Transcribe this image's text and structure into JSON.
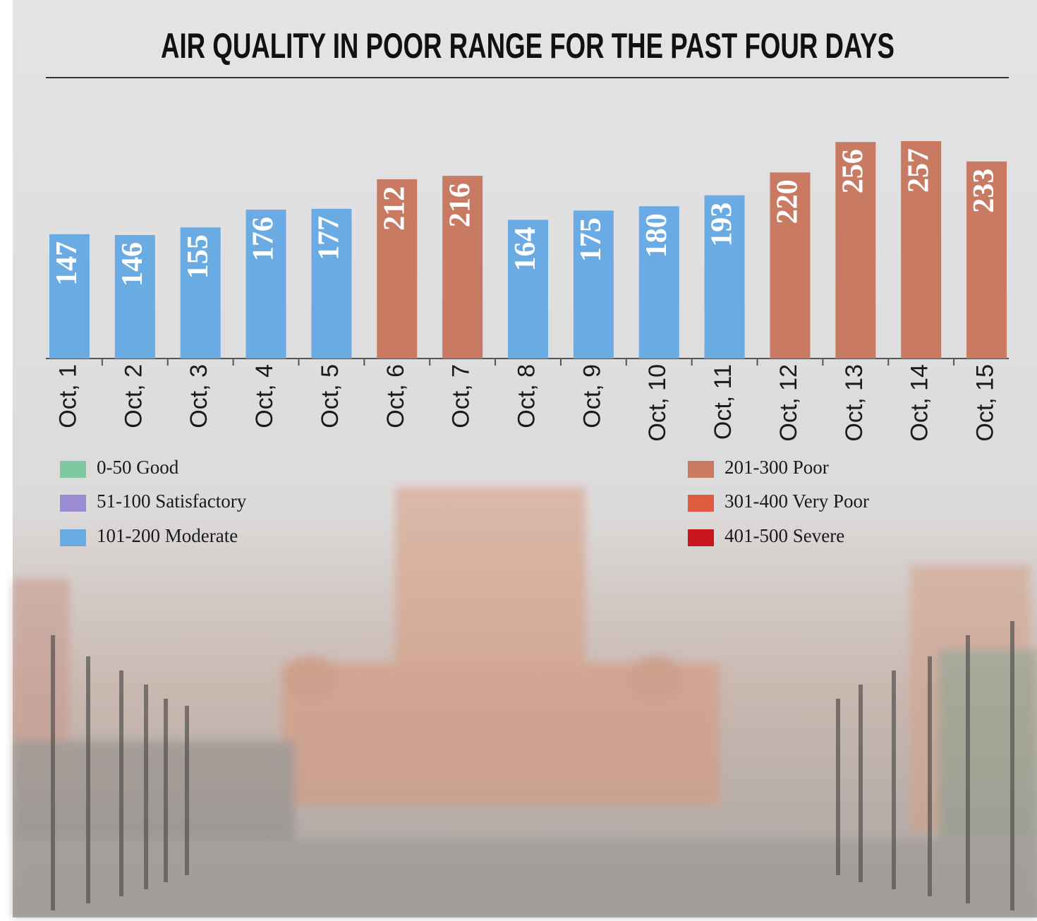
{
  "chart_data": {
    "type": "bar",
    "title": "AIR QUALITY IN POOR RANGE FOR THE PAST FOUR DAYS",
    "categories": [
      "Oct, 1",
      "Oct, 2",
      "Oct, 3",
      "Oct, 4",
      "Oct, 5",
      "Oct, 6",
      "Oct, 7",
      "Oct, 8",
      "Oct, 9",
      "Oct, 10",
      "Oct, 11",
      "Oct, 12",
      "Oct, 13",
      "Oct, 14",
      "Oct, 15"
    ],
    "values": [
      147,
      146,
      155,
      176,
      177,
      212,
      216,
      164,
      175,
      180,
      193,
      220,
      256,
      257,
      233
    ],
    "colors": [
      "#6aabe3",
      "#6aabe3",
      "#6aabe3",
      "#6aabe3",
      "#6aabe3",
      "#c87a62",
      "#c87a62",
      "#6aabe3",
      "#6aabe3",
      "#6aabe3",
      "#6aabe3",
      "#c87a62",
      "#c87a62",
      "#c87a62",
      "#c87a62"
    ],
    "legend": [
      {
        "label": "0-50 Good",
        "color": "#7fc9a0"
      },
      {
        "label": "51-100 Satisfactory",
        "color": "#9b8bd0"
      },
      {
        "label": "101-200 Moderate",
        "color": "#6aabe3"
      },
      {
        "label": "201-300 Poor",
        "color": "#c87a62"
      },
      {
        "label": "301-400 Very Poor",
        "color": "#df5a3f"
      },
      {
        "label": "401-500 Severe",
        "color": "#c9161e"
      }
    ]
  }
}
